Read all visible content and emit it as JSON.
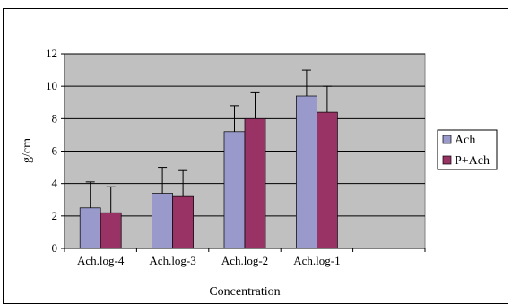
{
  "chart_data": {
    "type": "bar",
    "categories": [
      "Ach.log-4",
      "Ach.log-3",
      "Ach.log-2",
      "Ach.log-1",
      ""
    ],
    "series": [
      {
        "name": "Ach",
        "values": [
          2.5,
          3.4,
          7.2,
          9.4,
          null
        ],
        "errors": [
          1.6,
          1.6,
          1.6,
          1.6,
          null
        ],
        "color": "#9999cc"
      },
      {
        "name": "P+Ach",
        "values": [
          2.2,
          3.2,
          8.0,
          8.4,
          null
        ],
        "errors": [
          1.6,
          1.6,
          1.6,
          1.6,
          null
        ],
        "color": "#993366"
      }
    ],
    "yticks": [
      0,
      2,
      4,
      6,
      8,
      10,
      12
    ],
    "ylim": [
      0,
      12
    ],
    "xlabel": "Concentration",
    "ylabel": "g/cm",
    "title": "",
    "grid": true,
    "plot_background": "#c0c0c0",
    "legend_position": "right"
  }
}
